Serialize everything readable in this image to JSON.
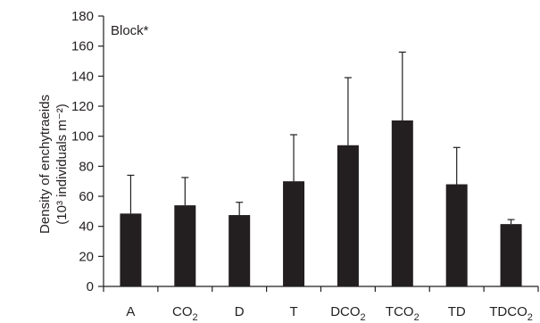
{
  "chart_data": {
    "type": "bar",
    "annotation": "Block*",
    "ylabel_line1": "Density of enchytraeids",
    "ylabel_line2": "(10³ individuals m⁻²)",
    "xlabel": "",
    "ylim": [
      0,
      180
    ],
    "yticks": [
      "0",
      "20",
      "40",
      "60",
      "80",
      "100",
      "120",
      "140",
      "160",
      "180"
    ],
    "categories": [
      {
        "base": "A",
        "sub": ""
      },
      {
        "base": "CO",
        "sub": "2"
      },
      {
        "base": "D",
        "sub": ""
      },
      {
        "base": "T",
        "sub": ""
      },
      {
        "base": "DCO",
        "sub": "2"
      },
      {
        "base": "TCO",
        "sub": "2"
      },
      {
        "base": "TD",
        "sub": ""
      },
      {
        "base": "TDCO",
        "sub": "2"
      }
    ],
    "values": [
      48.5,
      54,
      47.5,
      70,
      94,
      110.5,
      68,
      41.5
    ],
    "errors": [
      25.5,
      18.5,
      8.5,
      31,
      45,
      45.5,
      24.5,
      3
    ],
    "bar_color": "#231f20",
    "grid": false,
    "legend": "none"
  }
}
